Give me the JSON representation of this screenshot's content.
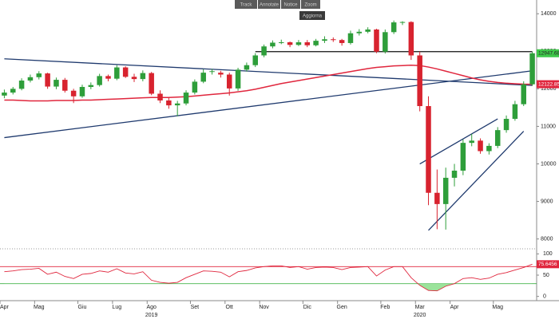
{
  "toolbar": {
    "buttons": [
      "Track",
      "Annotate",
      "Notice",
      "Zoom"
    ],
    "refresh": "Aggiorna"
  },
  "chart_data": [
    {
      "type": "candlestick",
      "categories": [
        "Apr",
        null,
        null,
        null,
        "Mag",
        null,
        null,
        null,
        null,
        "Giu",
        null,
        null,
        null,
        "Lug",
        null,
        null,
        null,
        "Ago",
        null,
        null,
        null,
        null,
        "Set",
        null,
        null,
        null,
        "Ott",
        null,
        null,
        null,
        "Nov",
        null,
        null,
        null,
        null,
        "Dic",
        null,
        null,
        null,
        "Gen",
        null,
        null,
        null,
        null,
        "Feb",
        null,
        null,
        null,
        "Mar",
        null,
        null,
        null,
        "Apr",
        null,
        null,
        null,
        null,
        "Mag",
        null,
        null,
        null,
        null
      ],
      "year_labels": [
        null,
        null,
        null,
        null,
        null,
        null,
        null,
        null,
        null,
        null,
        null,
        null,
        null,
        null,
        null,
        null,
        null,
        "2019",
        null,
        null,
        null,
        null,
        null,
        null,
        null,
        null,
        null,
        null,
        null,
        null,
        null,
        null,
        null,
        null,
        null,
        null,
        null,
        null,
        null,
        null,
        null,
        null,
        null,
        null,
        null,
        null,
        null,
        null,
        "2020",
        null,
        null,
        null,
        null,
        null,
        null,
        null,
        null,
        null,
        null,
        null,
        null,
        null
      ],
      "open": [
        11820,
        11900,
        12000,
        12220,
        12310,
        12410,
        12060,
        12240,
        11950,
        11800,
        12050,
        12100,
        12340,
        12270,
        12570,
        12320,
        12260,
        12420,
        11870,
        11690,
        11560,
        11610,
        11900,
        12190,
        12470,
        12430,
        12380,
        12010,
        12510,
        12630,
        12890,
        13130,
        13230,
        13240,
        13170,
        13240,
        13160,
        13280,
        13320,
        13300,
        13220,
        13480,
        13520,
        13580,
        12990,
        13510,
        13770,
        13780,
        12890,
        11540,
        9230,
        8930,
        9630,
        9820,
        10560,
        10620,
        10340,
        10480,
        10900,
        11200,
        11590,
        12120
      ],
      "high": [
        11980,
        12050,
        12280,
        12380,
        12470,
        12430,
        12300,
        12290,
        12000,
        12110,
        12170,
        12400,
        12380,
        12630,
        12600,
        12400,
        12490,
        12450,
        11960,
        11760,
        11680,
        11960,
        12250,
        12520,
        12530,
        12480,
        12430,
        12560,
        12700,
        12950,
        13180,
        13290,
        13310,
        13260,
        13300,
        13300,
        13330,
        13400,
        13370,
        13330,
        13550,
        13590,
        13640,
        13600,
        13580,
        13820,
        13800,
        13800,
        12990,
        11800,
        9850,
        9900,
        10000,
        10650,
        10800,
        10680,
        10550,
        10980,
        11290,
        11680,
        12200,
        12990
      ],
      "low": [
        11750,
        11850,
        11960,
        12170,
        12250,
        12000,
        11990,
        11900,
        11620,
        11760,
        11990,
        12060,
        12200,
        12230,
        12290,
        12180,
        12200,
        11830,
        11620,
        11470,
        11270,
        11560,
        11850,
        12150,
        12380,
        12300,
        11820,
        11950,
        12460,
        12580,
        12840,
        13080,
        13190,
        13110,
        13140,
        13110,
        13130,
        13220,
        13250,
        13150,
        13180,
        13420,
        13480,
        12950,
        12940,
        13460,
        13700,
        12770,
        11400,
        8900,
        8260,
        8250,
        9400,
        9700,
        10470,
        10270,
        10250,
        10420,
        10830,
        11150,
        11540,
        12080
      ],
      "close": [
        11900,
        12000,
        12220,
        12310,
        12410,
        12060,
        12240,
        11950,
        11800,
        12050,
        12100,
        12340,
        12270,
        12570,
        12320,
        12260,
        12420,
        11870,
        11690,
        11560,
        11610,
        11900,
        12190,
        12430,
        12470,
        12380,
        12010,
        12510,
        12630,
        12890,
        13130,
        13230,
        13240,
        13170,
        13240,
        13160,
        13280,
        13320,
        13300,
        13220,
        13480,
        13520,
        13580,
        12990,
        13510,
        13770,
        13780,
        12890,
        11540,
        9230,
        8930,
        9630,
        9820,
        10560,
        10620,
        10340,
        10480,
        10900,
        11200,
        11590,
        12120,
        12947.68
      ],
      "up_color": "#2e9e3a",
      "down_color": "#d8232f",
      "last_label_color": "#3ec94a",
      "moving_average": {
        "color": "#e0263d",
        "values": [
          11700,
          11700,
          11690,
          11680,
          11680,
          11680,
          11690,
          11690,
          11690,
          11700,
          11700,
          11710,
          11720,
          11730,
          11740,
          11750,
          11760,
          11770,
          11770,
          11770,
          11780,
          11790,
          11810,
          11830,
          11850,
          11870,
          11890,
          11920,
          11950,
          11990,
          12040,
          12090,
          12140,
          12180,
          12220,
          12260,
          12300,
          12340,
          12380,
          12420,
          12460,
          12500,
          12540,
          12570,
          12590,
          12610,
          12620,
          12630,
          12620,
          12580,
          12530,
          12470,
          12410,
          12350,
          12290,
          12240,
          12200,
          12170,
          12150,
          12135,
          12125,
          12122.85
        ]
      },
      "trendlines": [
        {
          "color": "#1f3a6e",
          "x": [
            0,
            61
          ],
          "y": [
            12800,
            12090
          ]
        },
        {
          "color": "#1f3a6e",
          "x": [
            0,
            61
          ],
          "y": [
            10700,
            12480
          ]
        },
        {
          "color": "#1f3a6e",
          "x": [
            48,
            57
          ],
          "y": [
            10000,
            11200
          ]
        },
        {
          "color": "#1f3a6e",
          "x": [
            49,
            60
          ],
          "y": [
            8230,
            10870
          ]
        },
        {
          "color": "#111111",
          "x": [
            29,
            61
          ],
          "y": [
            12990,
            12990
          ]
        }
      ],
      "ylim": [
        7780,
        14260
      ],
      "yticks": [
        8000,
        9000,
        10000,
        11000,
        12000,
        13000,
        14000
      ]
    },
    {
      "type": "line",
      "color": "#e0263d",
      "values": [
        58,
        60,
        63,
        64,
        66,
        52,
        57,
        47,
        42,
        52,
        54,
        60,
        57,
        65,
        55,
        53,
        58,
        38,
        33,
        31,
        33,
        44,
        52,
        60,
        59,
        57,
        46,
        58,
        61,
        67,
        70,
        72,
        72,
        68,
        70,
        64,
        68,
        69,
        68,
        63,
        68,
        69,
        70,
        48,
        62,
        70,
        70,
        44,
        26,
        14,
        13,
        24,
        30,
        42,
        44,
        40,
        43,
        52,
        56,
        62,
        68,
        75.6456
      ],
      "levels": [
        {
          "value": 70,
          "color": "#e0263d"
        },
        {
          "value": 30,
          "color": "#3cb043"
        }
      ],
      "oversold_fill": "#9be39b",
      "ylim": [
        -10,
        110
      ],
      "yticks": [
        0,
        50,
        100
      ]
    }
  ]
}
